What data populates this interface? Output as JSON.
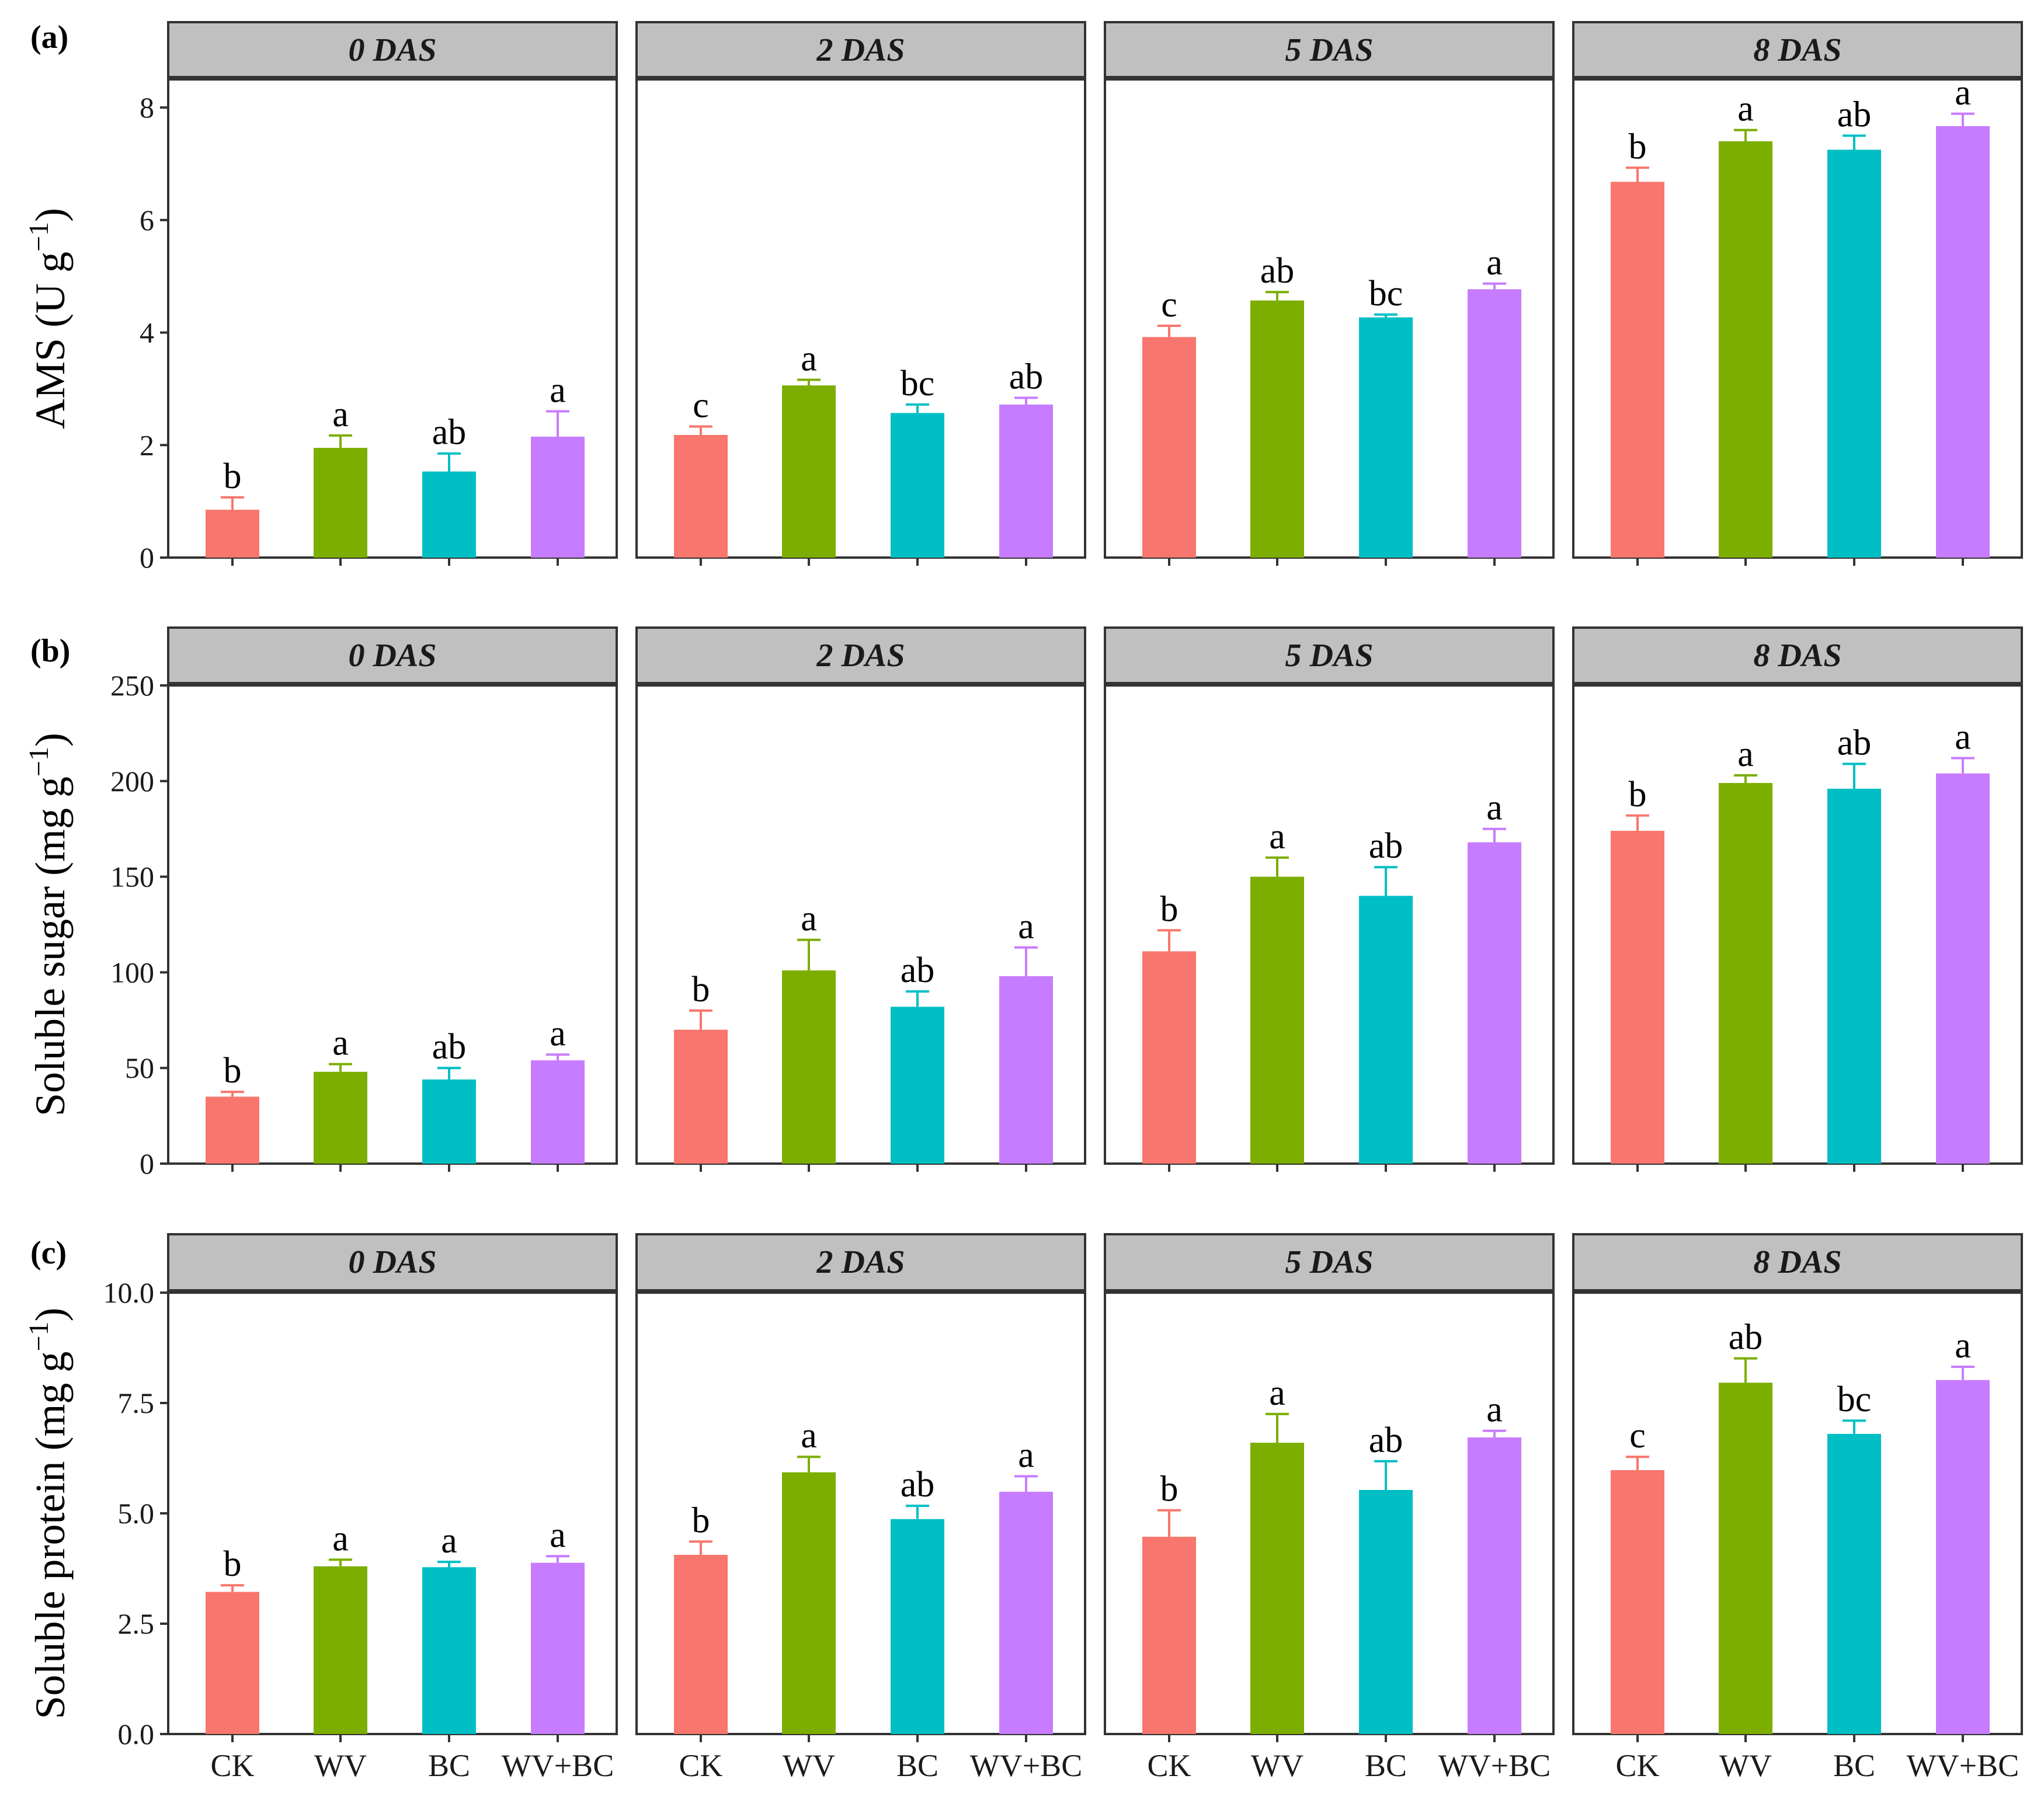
{
  "figure": {
    "categories": [
      "CK",
      "WV",
      "BC",
      "WV+BC"
    ],
    "colors": [
      "#F8766D",
      "#7CAE00",
      "#00BFC4",
      "#C77CFF"
    ],
    "strip_fill": "#C0C0C0"
  },
  "chart_data": [
    {
      "type": "bar",
      "panel_label": "(a)",
      "ylabel": "AMS (U g",
      "ylabel_sup": "−1",
      "ylabel_tail": ")",
      "ylim": [
        0,
        8.5
      ],
      "yticks": [
        0,
        2,
        4,
        6,
        8
      ],
      "ytick_labels": [
        "0",
        "2",
        "4",
        "6",
        "8"
      ],
      "categories": [
        "CK",
        "WV",
        "BC",
        "WV+BC"
      ],
      "facets": [
        {
          "title": "0 DAS",
          "values": [
            0.85,
            1.95,
            1.53,
            2.15
          ],
          "errors": [
            0.22,
            0.22,
            0.32,
            0.45
          ],
          "letters": [
            "b",
            "a",
            "ab",
            "a"
          ]
        },
        {
          "title": "2 DAS",
          "values": [
            2.18,
            3.06,
            2.57,
            2.72
          ],
          "errors": [
            0.15,
            0.1,
            0.15,
            0.12
          ],
          "letters": [
            "c",
            "a",
            "bc",
            "ab"
          ]
        },
        {
          "title": "5 DAS",
          "values": [
            3.92,
            4.57,
            4.27,
            4.77
          ],
          "errors": [
            0.2,
            0.15,
            0.05,
            0.1
          ],
          "letters": [
            "c",
            "ab",
            "bc",
            "a"
          ]
        },
        {
          "title": "8 DAS",
          "values": [
            6.68,
            7.4,
            7.25,
            7.67
          ],
          "errors": [
            0.25,
            0.2,
            0.25,
            0.22
          ],
          "letters": [
            "b",
            "a",
            "ab",
            "a"
          ]
        }
      ]
    },
    {
      "type": "bar",
      "panel_label": "(b)",
      "ylabel": "Soluble sugar (mg g",
      "ylabel_sup": "−1",
      "ylabel_tail": ")",
      "ylim": [
        0,
        250
      ],
      "yticks": [
        0,
        50,
        100,
        150,
        200,
        250
      ],
      "ytick_labels": [
        "0",
        "50",
        "100",
        "150",
        "200",
        "250"
      ],
      "categories": [
        "CK",
        "WV",
        "BC",
        "WV+BC"
      ],
      "facets": [
        {
          "title": "0 DAS",
          "values": [
            35,
            48,
            44,
            54
          ],
          "errors": [
            2.5,
            4,
            6,
            3
          ],
          "letters": [
            "b",
            "a",
            "ab",
            "a"
          ]
        },
        {
          "title": "2 DAS",
          "values": [
            70,
            101,
            82,
            98
          ],
          "errors": [
            10,
            16,
            8,
            15
          ],
          "letters": [
            "b",
            "a",
            "ab",
            "a"
          ]
        },
        {
          "title": "5 DAS",
          "values": [
            111,
            150,
            140,
            168
          ],
          "errors": [
            11,
            10,
            15,
            7
          ],
          "letters": [
            "b",
            "a",
            "ab",
            "a"
          ]
        },
        {
          "title": "8 DAS",
          "values": [
            174,
            199,
            196,
            204
          ],
          "errors": [
            8,
            4,
            13,
            8
          ],
          "letters": [
            "b",
            "a",
            "ab",
            "a"
          ]
        }
      ]
    },
    {
      "type": "bar",
      "panel_label": "(c)",
      "ylabel": "Soluble protein (mg g",
      "ylabel_sup": "−1",
      "ylabel_tail": ")",
      "ylim": [
        0,
        10
      ],
      "yticks": [
        0,
        2.5,
        5,
        7.5,
        10
      ],
      "ytick_labels": [
        "0.0",
        "2.5",
        "5.0",
        "7.5",
        "10.0"
      ],
      "categories": [
        "CK",
        "WV",
        "BC",
        "WV+BC"
      ],
      "facets": [
        {
          "title": "0 DAS",
          "values": [
            3.22,
            3.8,
            3.78,
            3.88
          ],
          "errors": [
            0.15,
            0.15,
            0.12,
            0.15
          ],
          "letters": [
            "b",
            "a",
            "a",
            "a"
          ]
        },
        {
          "title": "2 DAS",
          "values": [
            4.06,
            5.93,
            4.87,
            5.49
          ],
          "errors": [
            0.3,
            0.35,
            0.3,
            0.35
          ],
          "letters": [
            "b",
            "a",
            "ab",
            "a"
          ]
        },
        {
          "title": "5 DAS",
          "values": [
            4.47,
            6.6,
            5.53,
            6.72
          ],
          "errors": [
            0.6,
            0.65,
            0.65,
            0.15
          ],
          "letters": [
            "b",
            "a",
            "ab",
            "a"
          ]
        },
        {
          "title": "8 DAS",
          "values": [
            5.98,
            7.96,
            6.8,
            8.02
          ],
          "errors": [
            0.3,
            0.55,
            0.3,
            0.3
          ],
          "letters": [
            "c",
            "ab",
            "bc",
            "a"
          ]
        }
      ]
    }
  ]
}
